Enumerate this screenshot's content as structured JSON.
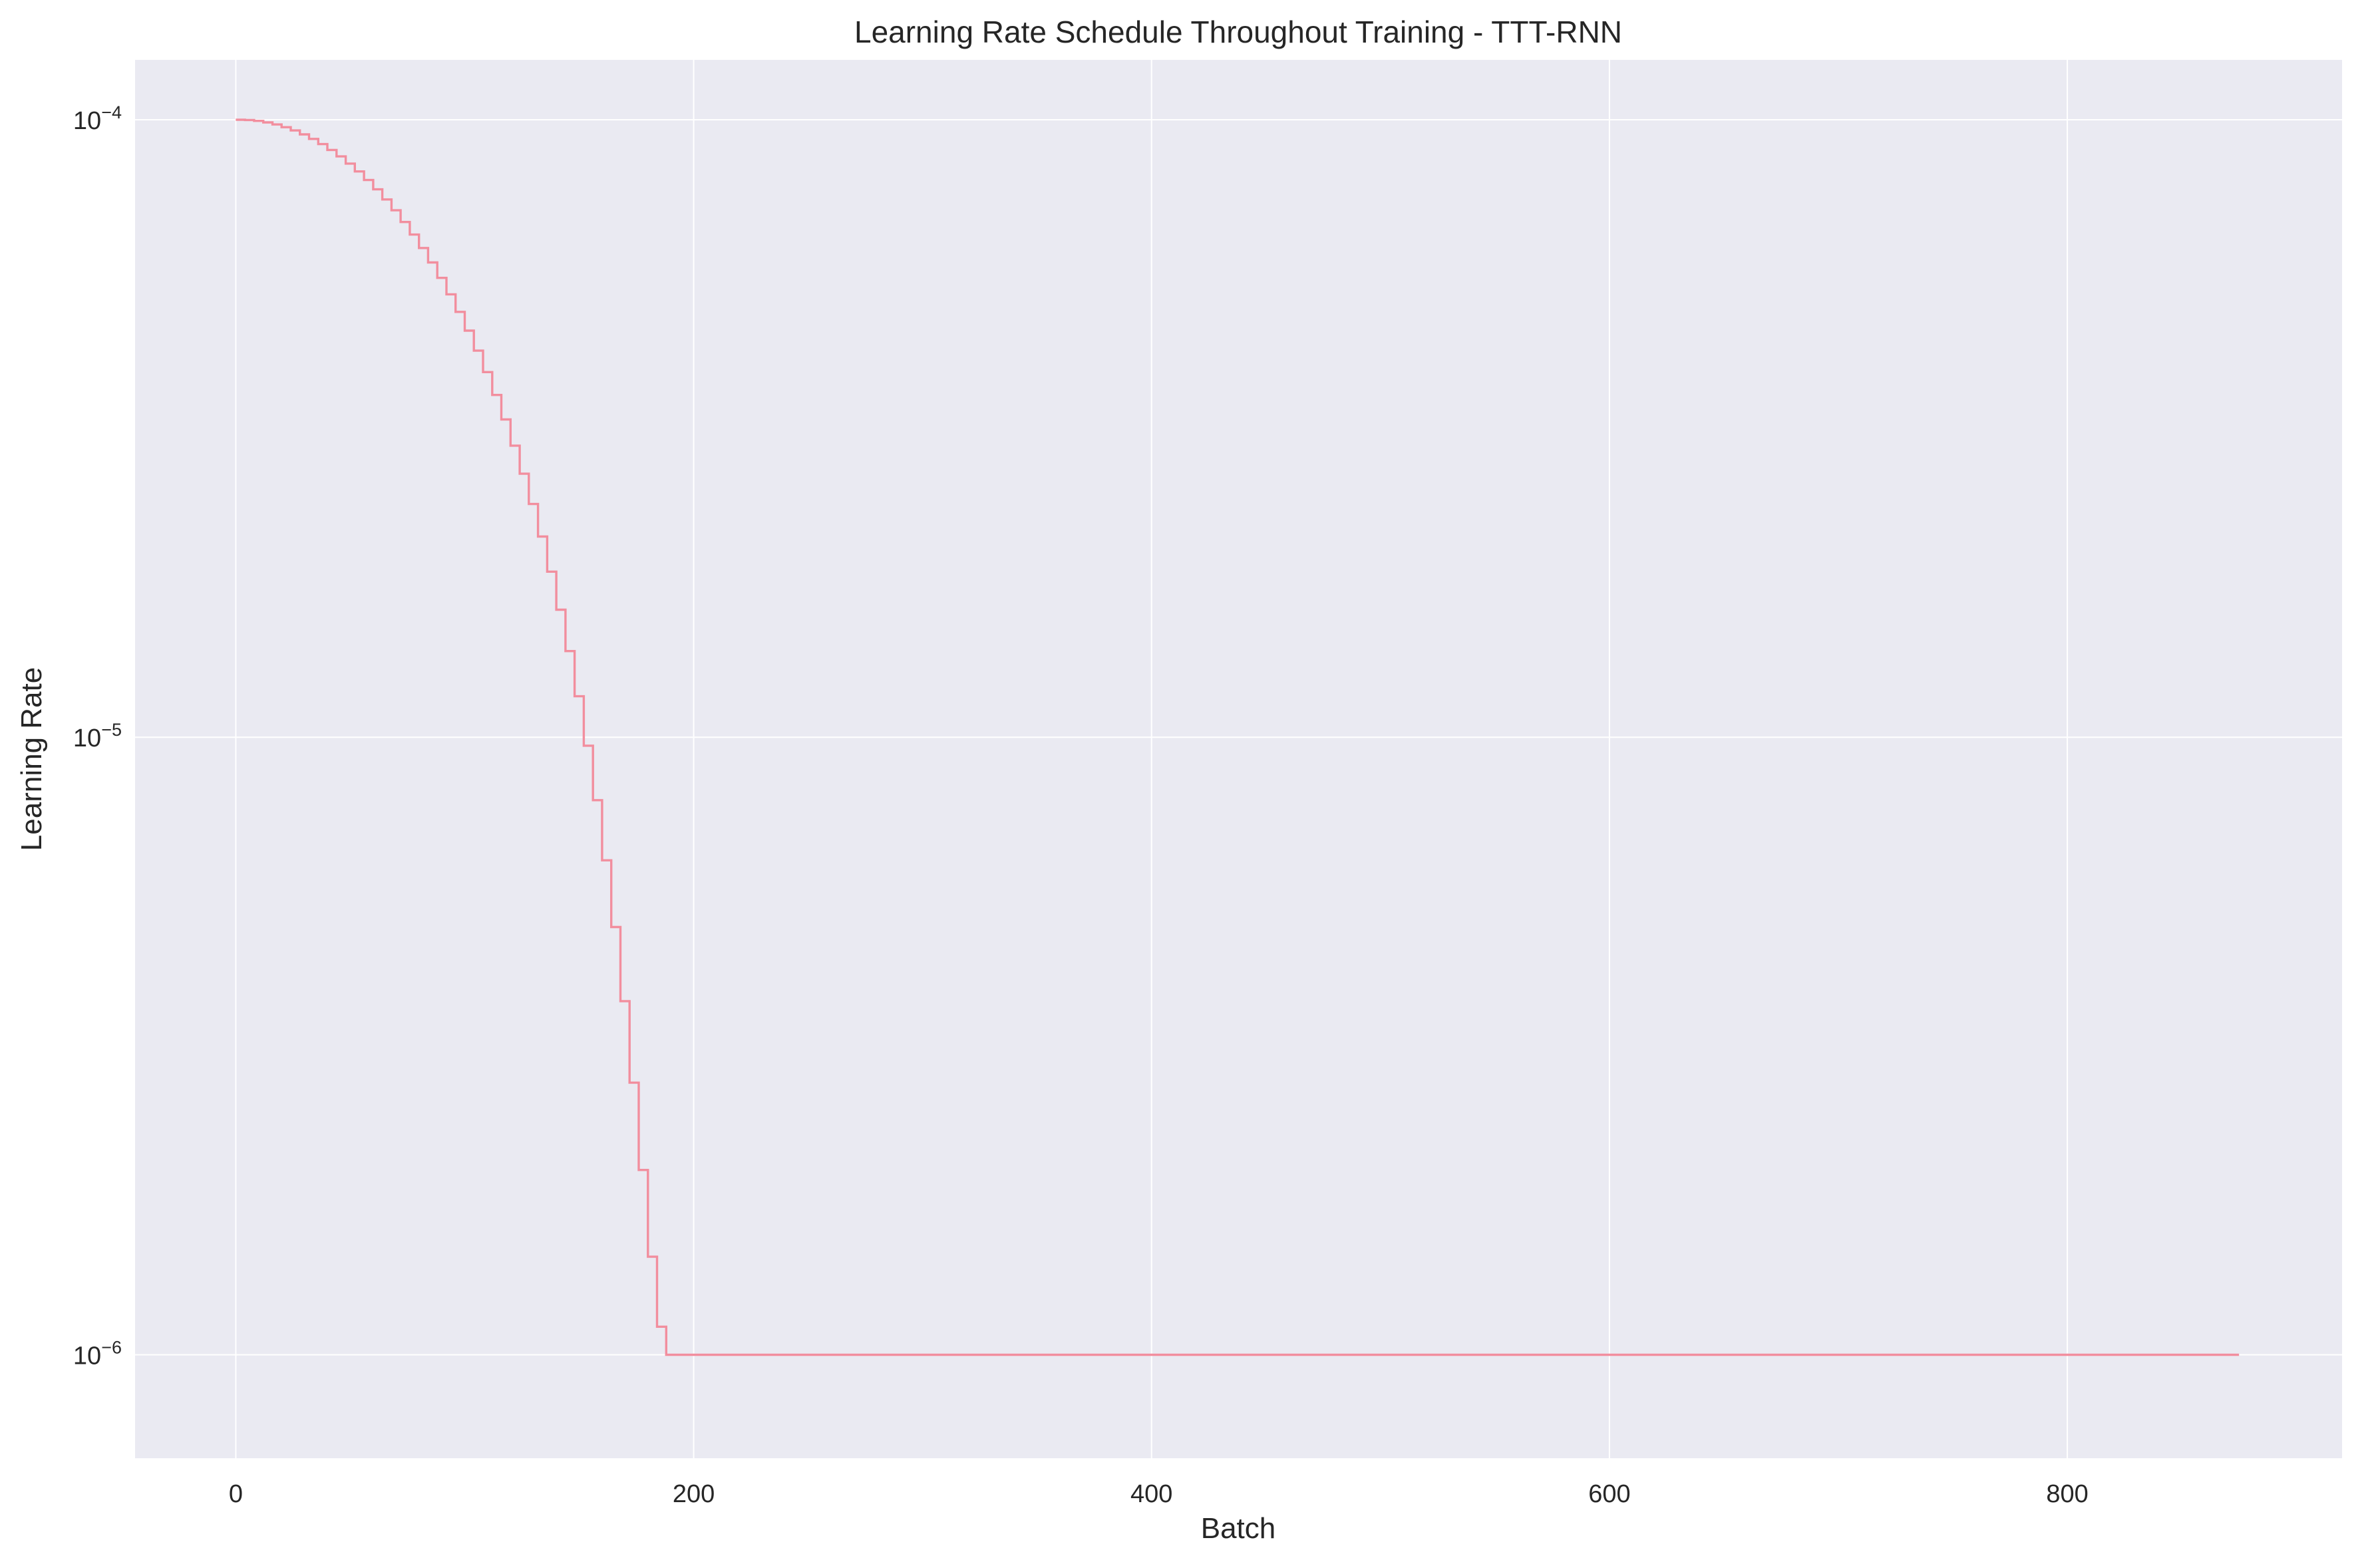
{
  "chart_data": {
    "type": "line",
    "title": "Learning Rate Schedule Throughout Training - TTT-RNN",
    "xlabel": "Batch",
    "ylabel": "Learning Rate",
    "xscale": "linear",
    "yscale": "log",
    "xlim": [
      -44,
      920
    ],
    "ylim": [
      6.8e-07,
      0.000125
    ],
    "xticks": [
      {
        "value": 0,
        "label": "0"
      },
      {
        "value": 200,
        "label": "200"
      },
      {
        "value": 400,
        "label": "400"
      },
      {
        "value": 600,
        "label": "600"
      },
      {
        "value": 800,
        "label": "800"
      }
    ],
    "yticks": [
      {
        "value": 1e-06,
        "base": "10",
        "exponent": "−6"
      },
      {
        "value": 1e-05,
        "base": "10",
        "exponent": "−5"
      },
      {
        "value": 0.0001,
        "base": "10",
        "exponent": "−4"
      }
    ],
    "grid": true,
    "legend": "none",
    "colors": {
      "line": "#f28e9e",
      "plot_background": "#eaeaf2",
      "grid": "#ffffff"
    },
    "series": [
      {
        "drawstyle": "steps-post",
        "schedule": "cosine decay with minimum learning rate",
        "lr_max": 0.0001,
        "lr_min": 1e-06,
        "decay_end_batch": 188,
        "batches_per_step": 4,
        "x_range": [
          0,
          875
        ],
        "x": [
          0,
          20,
          40,
          60,
          80,
          100,
          120,
          140,
          160,
          170,
          180,
          188,
          400,
          600,
          875
        ],
        "values": [
          0.0001,
          9.7e-05,
          8.9e-05,
          7.6e-05,
          6e-05,
          4.3e-05,
          2.8e-05,
          1.6e-05,
          7.8e-06,
          5e-06,
          2e-06,
          1e-06,
          1e-06,
          1e-06,
          1e-06
        ]
      }
    ]
  }
}
